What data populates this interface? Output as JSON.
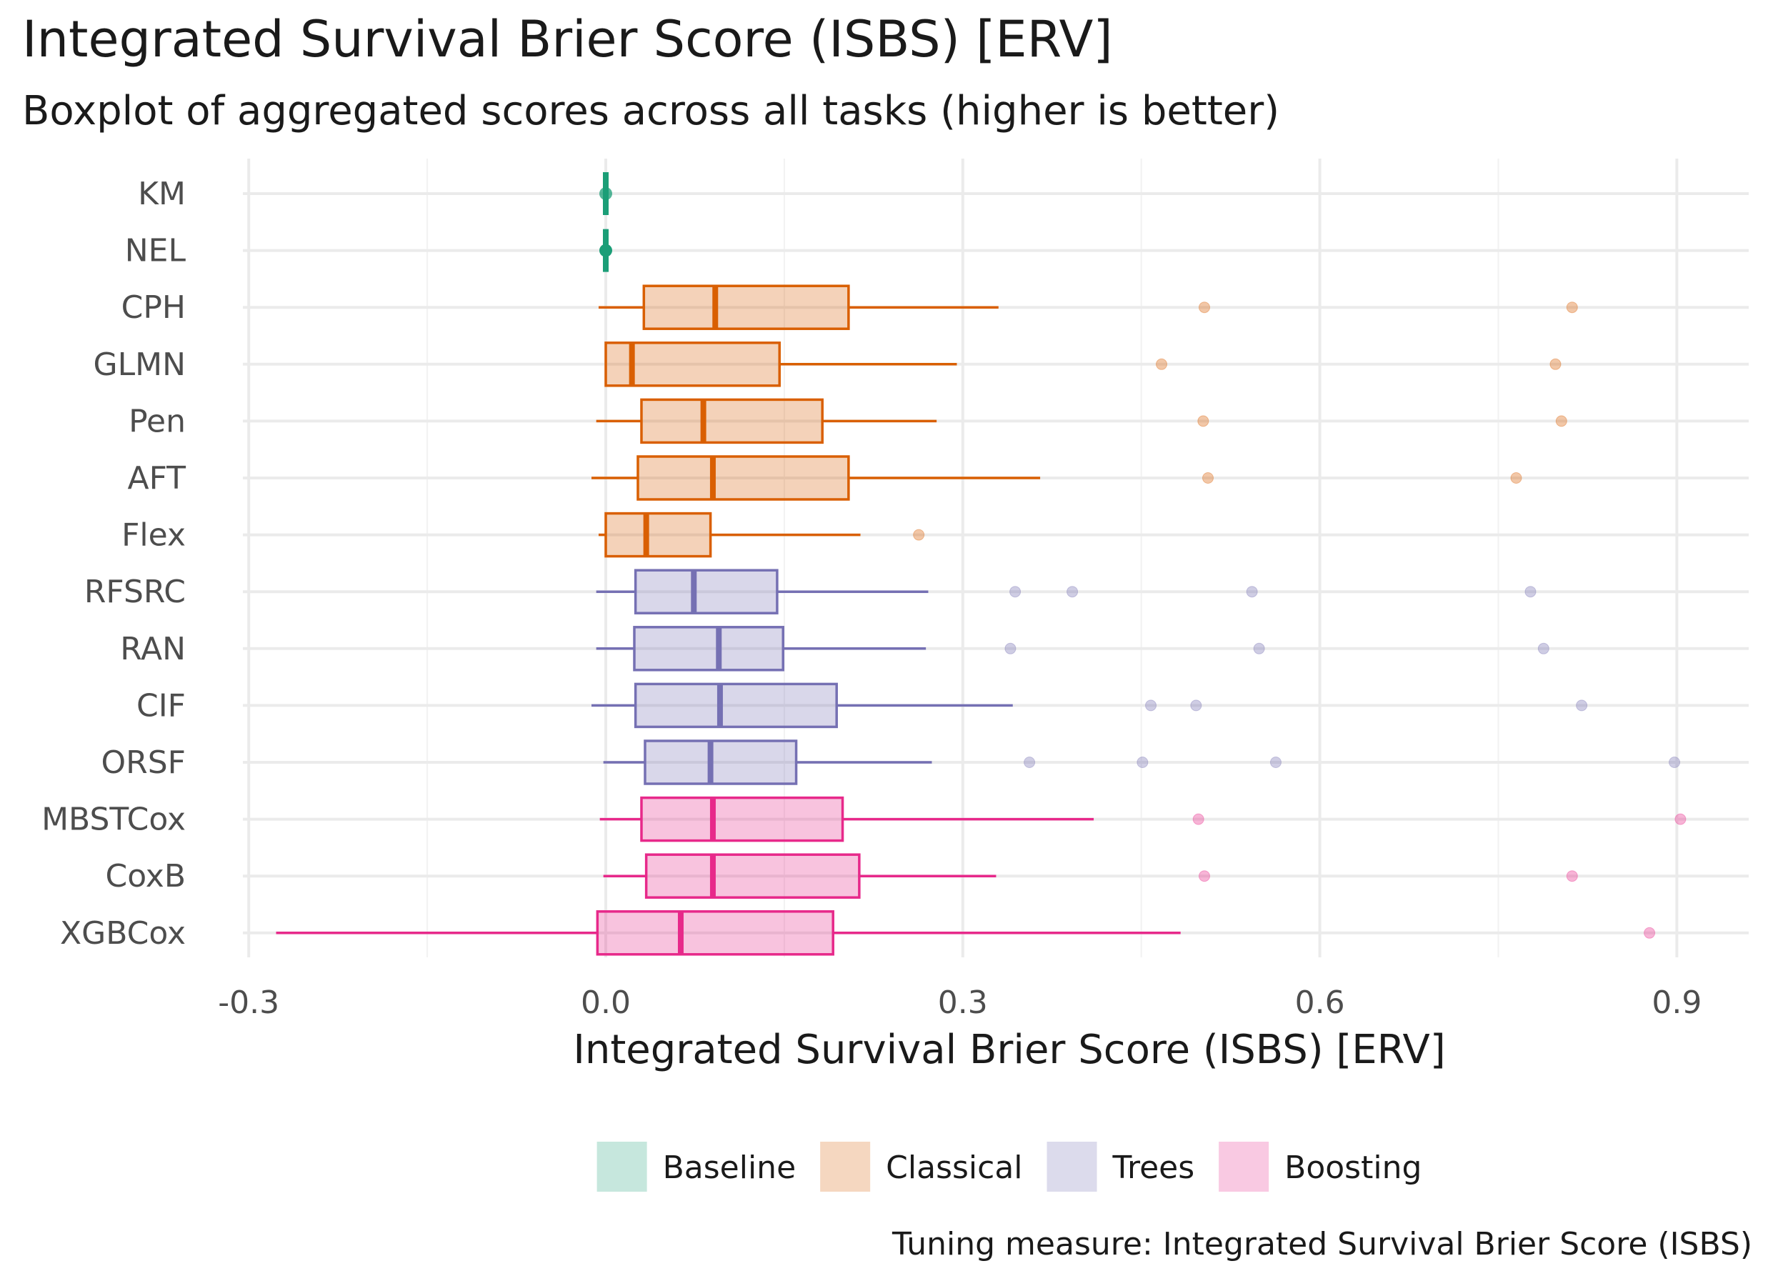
{
  "chart_data": {
    "type": "boxplot",
    "title": "Integrated Survival Brier Score (ISBS) [ERV]",
    "subtitle": "Boxplot of aggregated scores across all tasks (higher is better)",
    "xlabel": "Integrated Survival Brier Score (ISBS) [ERV]",
    "ylabel": "",
    "caption": "Tuning measure: Integrated Survival Brier Score (ISBS)",
    "xlim": [
      -0.33,
      0.965
    ],
    "xticks": [
      -0.3,
      0.0,
      0.3,
      0.6,
      0.9
    ],
    "xtick_labels": [
      "-0.3",
      "0.0",
      "0.3",
      "0.6",
      "0.9"
    ],
    "grid": true,
    "legend_position": "bottom",
    "groups": [
      {
        "name": "Baseline",
        "color": "#1B9E77"
      },
      {
        "name": "Classical",
        "color": "#D95F02"
      },
      {
        "name": "Trees",
        "color": "#7570B3"
      },
      {
        "name": "Boosting",
        "color": "#E7298A"
      }
    ],
    "series": [
      {
        "name": "KM",
        "group": "Baseline",
        "whisker_low": 0.0,
        "q1": 0.0,
        "median": 0.0,
        "q3": 0.0,
        "whisker_high": 0.0,
        "outliers": [
          0.0
        ]
      },
      {
        "name": "NEL",
        "group": "Baseline",
        "whisker_low": 0.0,
        "q1": 0.0,
        "median": 0.0,
        "q3": 0.0,
        "whisker_high": 0.0,
        "outliers": [
          0.0
        ]
      },
      {
        "name": "CPH",
        "group": "Classical",
        "whisker_low": -0.006,
        "q1": 0.032,
        "median": 0.092,
        "q3": 0.204,
        "whisker_high": 0.33,
        "outliers": [
          0.503,
          0.812
        ]
      },
      {
        "name": "GLMN",
        "group": "Classical",
        "whisker_low": 0.0,
        "q1": 0.0,
        "median": 0.022,
        "q3": 0.146,
        "whisker_high": 0.295,
        "outliers": [
          0.467,
          0.798
        ]
      },
      {
        "name": "Pen",
        "group": "Classical",
        "whisker_low": -0.008,
        "q1": 0.03,
        "median": 0.082,
        "q3": 0.182,
        "whisker_high": 0.278,
        "outliers": [
          0.502,
          0.803
        ]
      },
      {
        "name": "AFT",
        "group": "Classical",
        "whisker_low": -0.012,
        "q1": 0.027,
        "median": 0.09,
        "q3": 0.204,
        "whisker_high": 0.365,
        "outliers": [
          0.506,
          0.765
        ]
      },
      {
        "name": "Flex",
        "group": "Classical",
        "whisker_low": -0.006,
        "q1": 0.0,
        "median": 0.034,
        "q3": 0.088,
        "whisker_high": 0.214,
        "outliers": [
          0.263
        ]
      },
      {
        "name": "RFSRC",
        "group": "Trees",
        "whisker_low": -0.008,
        "q1": 0.025,
        "median": 0.074,
        "q3": 0.144,
        "whisker_high": 0.271,
        "outliers": [
          0.344,
          0.392,
          0.543,
          0.777
        ]
      },
      {
        "name": "RAN",
        "group": "Trees",
        "whisker_low": -0.008,
        "q1": 0.024,
        "median": 0.095,
        "q3": 0.149,
        "whisker_high": 0.269,
        "outliers": [
          0.34,
          0.549,
          0.788
        ]
      },
      {
        "name": "CIF",
        "group": "Trees",
        "whisker_low": -0.012,
        "q1": 0.025,
        "median": 0.096,
        "q3": 0.194,
        "whisker_high": 0.342,
        "outliers": [
          0.458,
          0.496,
          0.82
        ]
      },
      {
        "name": "ORSF",
        "group": "Trees",
        "whisker_low": -0.002,
        "q1": 0.033,
        "median": 0.088,
        "q3": 0.16,
        "whisker_high": 0.274,
        "outliers": [
          0.356,
          0.451,
          0.563,
          0.898
        ]
      },
      {
        "name": "MBSTCox",
        "group": "Boosting",
        "whisker_low": -0.005,
        "q1": 0.03,
        "median": 0.09,
        "q3": 0.199,
        "whisker_high": 0.41,
        "outliers": [
          0.498,
          0.903
        ]
      },
      {
        "name": "CoxB",
        "group": "Boosting",
        "whisker_low": -0.002,
        "q1": 0.034,
        "median": 0.09,
        "q3": 0.213,
        "whisker_high": 0.328,
        "outliers": [
          0.503,
          0.812
        ]
      },
      {
        "name": "XGBCox",
        "group": "Boosting",
        "whisker_low": -0.277,
        "q1": -0.007,
        "median": 0.063,
        "q3": 0.191,
        "whisker_high": 0.483,
        "outliers": [
          0.877
        ]
      }
    ]
  }
}
